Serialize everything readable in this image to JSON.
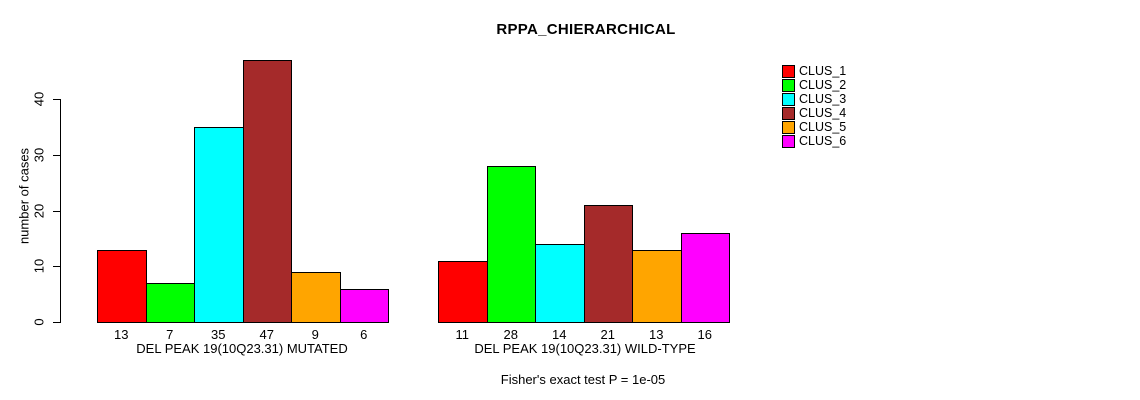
{
  "chart_data": {
    "type": "bar",
    "title": "RPPA_CHIERARCHICAL",
    "ylabel": "number of cases",
    "ylim": [
      0,
      47
    ],
    "yticks": [
      0,
      10,
      20,
      30,
      40
    ],
    "grid": false,
    "legend_position": "right",
    "categories": [
      "CLUS_1",
      "CLUS_2",
      "CLUS_3",
      "CLUS_4",
      "CLUS_5",
      "CLUS_6"
    ],
    "groups": [
      {
        "label": "DEL PEAK 19(10Q23.31) MUTATED",
        "values": [
          13,
          7,
          35,
          47,
          9,
          6
        ]
      },
      {
        "label": "DEL PEAK 19(10Q23.31) WILD-TYPE",
        "values": [
          11,
          28,
          14,
          21,
          13,
          16
        ]
      }
    ],
    "legend": [
      {
        "label": "CLUS_1",
        "color": "#FF0000"
      },
      {
        "label": "CLUS_2",
        "color": "#00FF00"
      },
      {
        "label": "CLUS_3",
        "color": "#00FFFF"
      },
      {
        "label": "CLUS_4",
        "color": "#A52A2A"
      },
      {
        "label": "CLUS_5",
        "color": "#FFA500"
      },
      {
        "label": "CLUS_6",
        "color": "#FF00FF"
      }
    ],
    "annotation": "Fisher's exact test P = 1e-05",
    "colors": {
      "bar_border": "#000000",
      "axis": "#000000",
      "text": "#000000",
      "background": "#FFFFFF"
    }
  }
}
